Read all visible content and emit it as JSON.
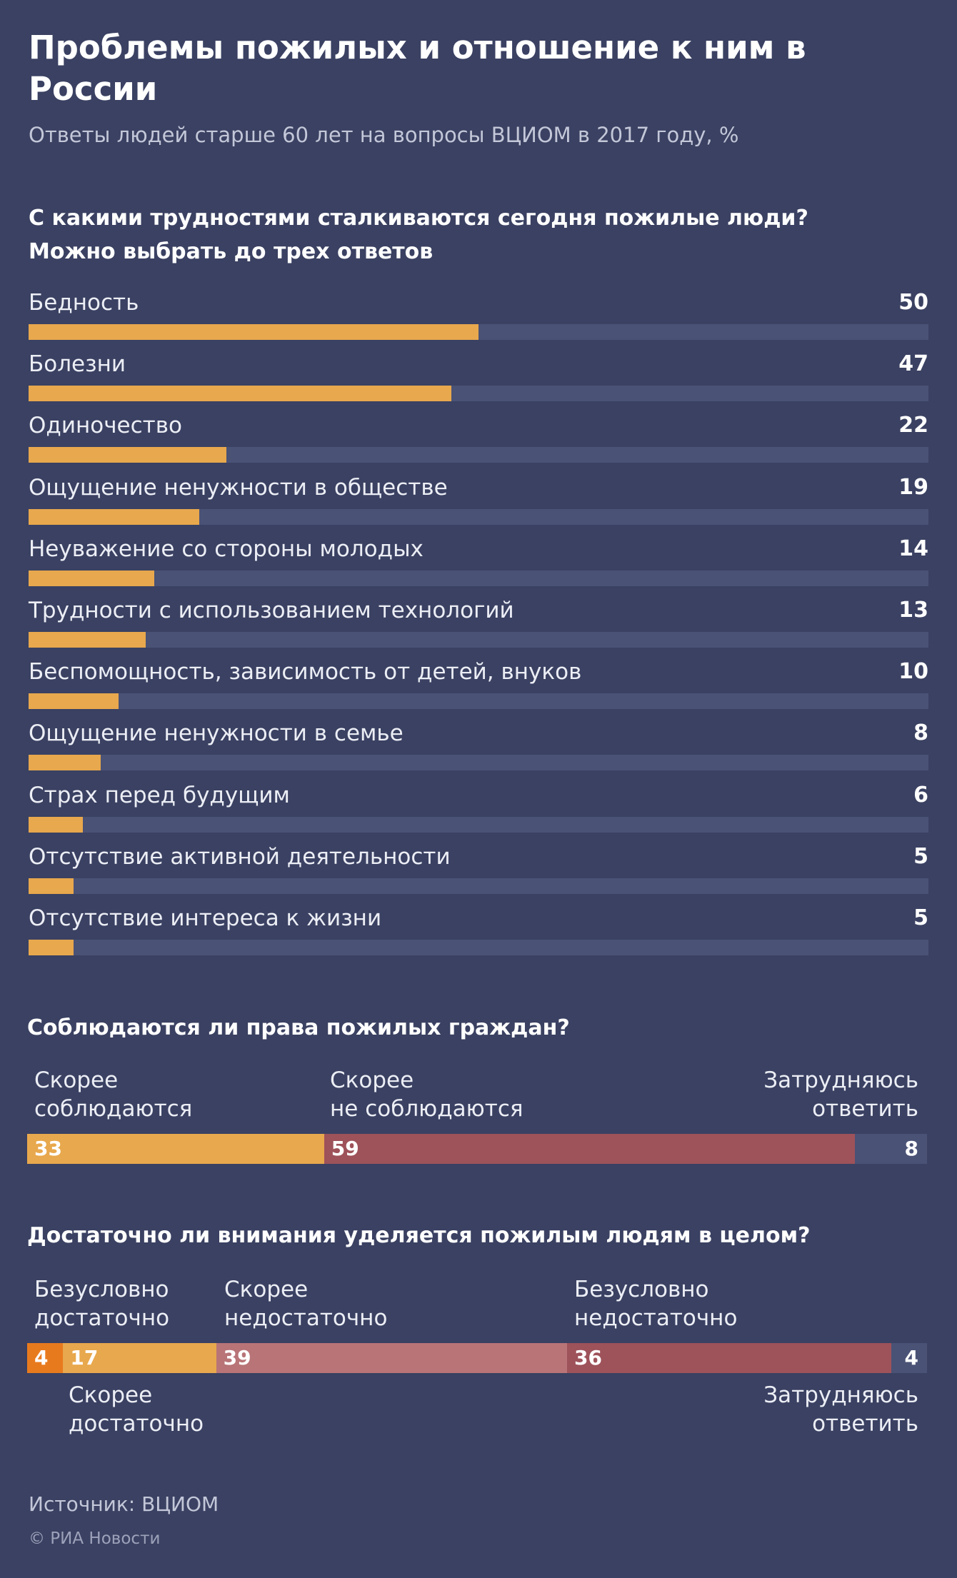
{
  "header": {
    "title": "Проблемы пожилых и отношение к ним в России",
    "subtitle": "Ответы людей старше 60 лет на вопросы ВЦИОМ в 2017 году, %"
  },
  "colors": {
    "background": "#3a4162",
    "track": "#4a5276",
    "orange": "#e8a84d",
    "dark_orange": "#e87a1e",
    "red": "#9e525a",
    "pink": "#b87477",
    "gray": "#4a5276"
  },
  "chart_data": [
    {
      "type": "bar",
      "orientation": "horizontal",
      "title": "С какими трудностями сталкиваются сегодня пожилые люди? Можно выбрать до трех ответов",
      "categories": [
        "Бедность",
        "Болезни",
        "Одиночество",
        "Ощущение ненужности в обществе",
        "Неуважение со стороны молодых",
        "Трудности с использованием технологий",
        "Беспомощность, зависимость от детей, внуков",
        "Ощущение ненужности в семье",
        "Страх перед будущим",
        "Отсутствие активной деятельности",
        "Отсутствие интереса к жизни"
      ],
      "values": [
        50,
        47,
        22,
        19,
        14,
        13,
        10,
        8,
        6,
        5,
        5
      ],
      "xlim": [
        0,
        100
      ]
    },
    {
      "type": "bar",
      "orientation": "stacked-horizontal",
      "title": "Соблюдаются ли права пожилых граждан?",
      "segments": [
        {
          "name": "Скорее соблюдаются",
          "value": 33,
          "color": "#e8a84d"
        },
        {
          "name": "Скорее не соблюдаются",
          "value": 59,
          "color": "#9e525a"
        },
        {
          "name": "Затрудняюсь ответить",
          "value": 8,
          "color": "#4a5276"
        }
      ],
      "labels": [
        {
          "line1": "Скорее",
          "line2": "соблюдаются"
        },
        {
          "line1": "Скорее",
          "line2": "не соблюдаются"
        },
        {
          "line1": "Затрудняюсь",
          "line2": "ответить"
        }
      ]
    },
    {
      "type": "bar",
      "orientation": "stacked-horizontal",
      "title": "Достаточно ли внимания уделяется пожилым людям в целом?",
      "segments": [
        {
          "name": "Безусловно достаточно",
          "value": 4,
          "color": "#e87a1e"
        },
        {
          "name": "Скорее достаточно",
          "value": 17,
          "color": "#e8a84d"
        },
        {
          "name": "Скорее недостаточно",
          "value": 39,
          "color": "#b87477"
        },
        {
          "name": "Безусловно недостаточно",
          "value": 36,
          "color": "#9e525a"
        },
        {
          "name": "Затрудняюсь ответить",
          "value": 4,
          "color": "#4a5276"
        }
      ],
      "labels_top": [
        {
          "line1": "Безусловно",
          "line2": "достаточно"
        },
        {
          "line1": "Скорее",
          "line2": "недостаточно"
        },
        {
          "line1": "Безусловно",
          "line2": "недостаточно"
        }
      ],
      "labels_bottom": [
        {
          "line1": "Скорее",
          "line2": "достаточно"
        },
        {
          "line1": "Затрудняюсь",
          "line2": "ответить"
        }
      ]
    }
  ],
  "footer": {
    "source": "Источник: ВЦИОМ",
    "copyright": "© РИА Новости"
  }
}
